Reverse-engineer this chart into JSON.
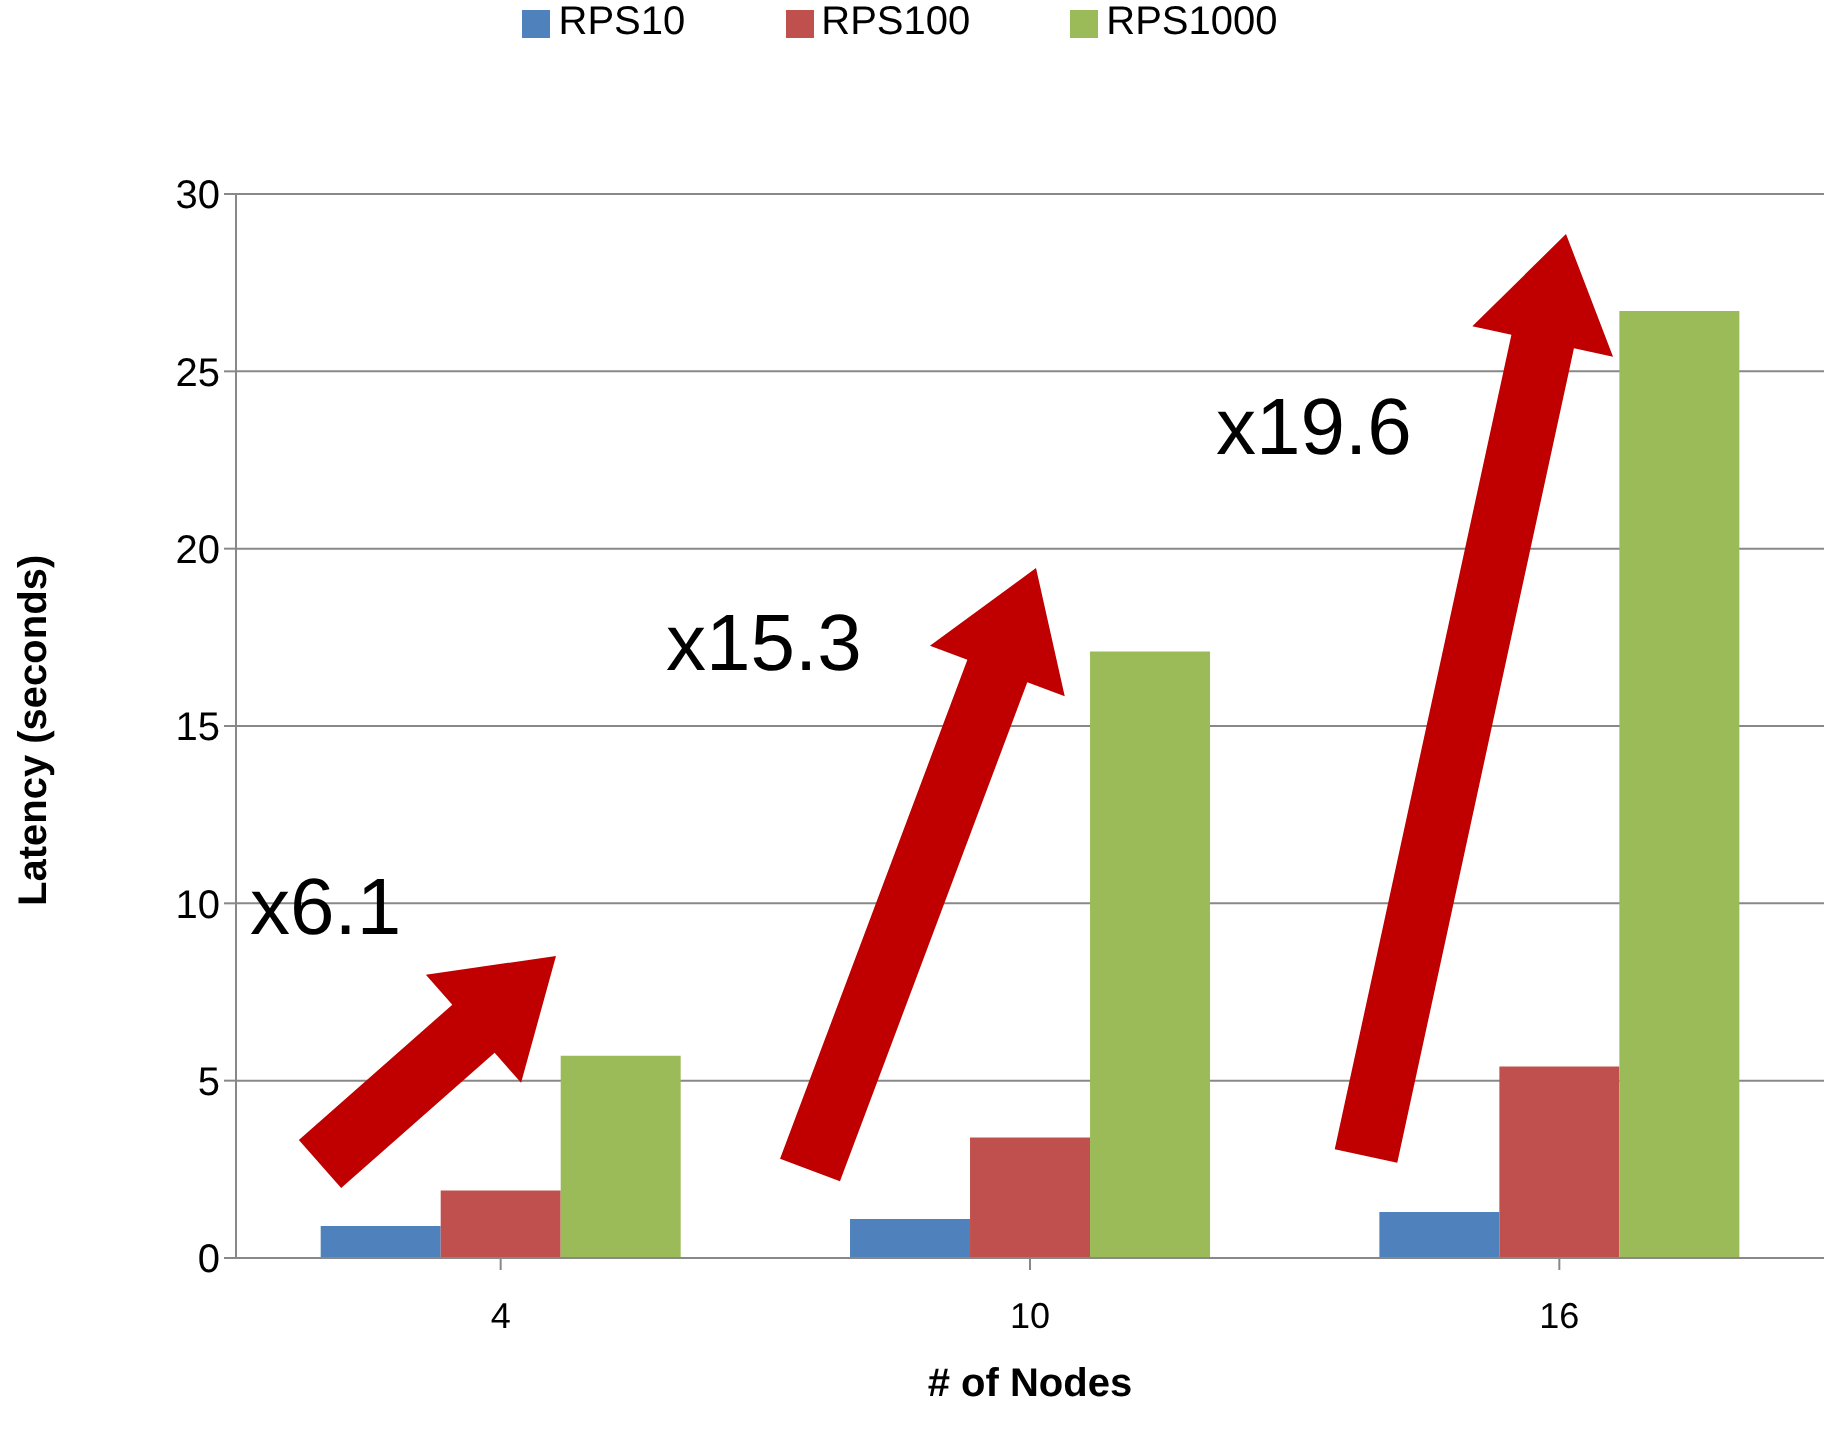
{
  "chart_data": {
    "type": "bar",
    "xlabel": "# of Nodes",
    "ylabel": "Latency (seconds)",
    "categories": [
      "4",
      "10",
      "16"
    ],
    "series": [
      {
        "name": "RPS10",
        "color": "#4f81bd",
        "values": [
          0.9,
          1.1,
          1.3
        ]
      },
      {
        "name": "RPS100",
        "color": "#c0504d",
        "values": [
          1.9,
          3.4,
          5.4
        ]
      },
      {
        "name": "RPS1000",
        "color": "#9bbb59",
        "values": [
          5.7,
          17.1,
          26.7
        ]
      }
    ],
    "ylim": [
      0,
      30
    ],
    "yticks": [
      0,
      5,
      10,
      15,
      20,
      25,
      30
    ],
    "grid": "y",
    "legend": "top",
    "annotations": [
      "x6.1",
      "x15.3",
      "x19.6"
    ]
  }
}
